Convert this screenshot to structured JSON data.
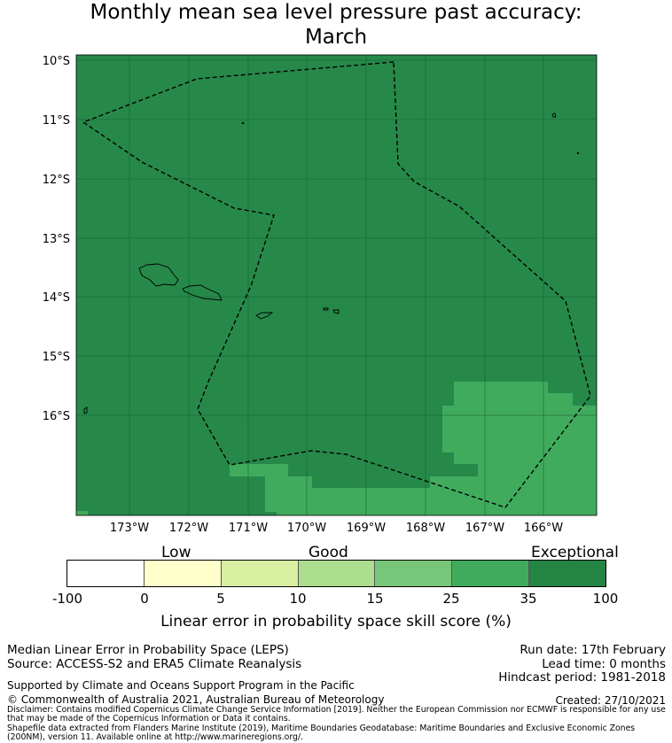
{
  "title_line1": "Monthly mean sea level pressure past accuracy:",
  "title_line2": "March",
  "map": {
    "lat_range": [
      -17.75,
      -10
    ],
    "lon_range": [
      -174,
      -165.25
    ],
    "lat_labels": [
      "10°S",
      "11°S",
      "12°S",
      "13°S",
      "14°S",
      "15°S",
      "16°S"
    ],
    "lon_labels": [
      "173°W",
      "172°W",
      "171°W",
      "170°W",
      "169°W",
      "168°W",
      "167°W",
      "166°W"
    ],
    "background_color": "#26894a",
    "lighter_zone_color": "#40ab5d",
    "boundary_style": "dashed"
  },
  "colorbar": {
    "categories": [
      "Low",
      "Good",
      "Exceptional"
    ],
    "tick_labels": [
      "-100",
      "0",
      "5",
      "10",
      "15",
      "25",
      "35",
      "100"
    ],
    "colors": [
      "#ffffff",
      "#ffffcc",
      "#d9f0a3",
      "#addd8e",
      "#78c679",
      "#41ab5d",
      "#238443"
    ],
    "title": "Linear error in probability space skill score (%)"
  },
  "footer": {
    "method": "Median Linear Error in Probability Space (LEPS)",
    "source": "Source: ACCESS-S2 and ERA5 Climate Reanalysis",
    "support": "Supported by Climate and Oceans Support Program in the Pacific",
    "copyright": "© Commonwealth of Australia 2021, Australian Bureau of Meteorology",
    "run_date": "Run date: 17th February",
    "lead_time": "Lead time: 0 months",
    "hindcast": "Hindcast period: 1981-2018",
    "created": "Created: 27/10/2021",
    "disclaimer": "Disclaimer: Contains modified Copernicus Climate Change Service Information [2019]. Neither the European Commission nor ECMWF is responsible for any use that may be made of the Copernicus Information or Data it contains.",
    "shapefile": "Shapefile data extracted from Flanders Marine Institute (2019), Maritime Boundaries Geodatabase: Maritime Boundaries and Exclusive Economic Zones (200NM), version 11. Available online at http://www.marineregions.org/."
  }
}
